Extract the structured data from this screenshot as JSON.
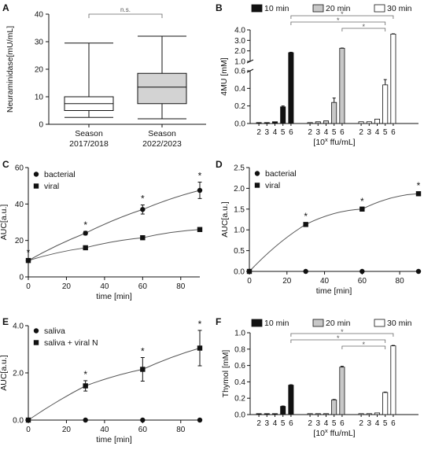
{
  "chart_data": [
    {
      "panel": "A",
      "type": "box",
      "ylabel": "Neuraminidase[mU/mL]",
      "ylim": [
        0,
        40
      ],
      "yticks": [
        0,
        10,
        20,
        30,
        40
      ],
      "categories": [
        [
          "Season",
          "2017/2018"
        ],
        [
          "Season",
          "2022/2023"
        ]
      ],
      "boxes": [
        {
          "min": 2.5,
          "q1": 5,
          "median": 7.5,
          "q3": 10,
          "max": 29.5,
          "fill": "#ffffff"
        },
        {
          "min": 2,
          "q1": 7.5,
          "median": 13.5,
          "q3": 18.5,
          "max": 32,
          "fill": "#d3d3d3"
        }
      ],
      "annotation": "n.s."
    },
    {
      "panel": "B",
      "type": "bar",
      "ylabel": "4MU [mM]",
      "xlabel": "[10",
      "xlabel_sup": "x",
      "xlabel_tail": " ffu/mL]",
      "categories": [
        "2",
        "3",
        "4",
        "5",
        "6"
      ],
      "broken_axis": {
        "lower": [
          0,
          0.6
        ],
        "upper": [
          1,
          4
        ]
      },
      "lower_ticks": [
        "0.0",
        "0.2",
        "0.4",
        "0.6"
      ],
      "upper_ticks": [
        "1.0",
        "2.0",
        "3.0",
        "4.0"
      ],
      "series": [
        {
          "name": "10 min",
          "color": "#111111",
          "values": [
            0.01,
            0.01,
            0.02,
            0.19,
            1.83
          ],
          "errors": [
            0,
            0,
            0,
            0.01,
            0.04
          ]
        },
        {
          "name": "20 min",
          "color": "#c8c8c8",
          "values": [
            0.01,
            0.02,
            0.03,
            0.24,
            2.25
          ],
          "errors": [
            0,
            0,
            0,
            0.05,
            0.02
          ]
        },
        {
          "name": "30 min",
          "color": "#ffffff",
          "values": [
            0.02,
            0.02,
            0.05,
            0.44,
            3.6
          ],
          "errors": [
            0,
            0,
            0,
            0.06,
            0.03
          ]
        }
      ],
      "annotation": "*"
    },
    {
      "panel": "C",
      "type": "line",
      "ylabel": "AUC[a.u.]",
      "xlabel": "time [min]",
      "xlim": [
        0,
        90
      ],
      "ylim": [
        0,
        60
      ],
      "xticks": [
        0,
        20,
        40,
        60,
        80
      ],
      "yticks": [
        0,
        20,
        40,
        60
      ],
      "series": [
        {
          "name": "bacterial",
          "marker": "circle",
          "x": [
            0,
            30,
            60,
            90
          ],
          "y": [
            9,
            24,
            37,
            47.5
          ],
          "errors": [
            1,
            1,
            2.5,
            4.5
          ],
          "stars": [
            true,
            true,
            true,
            true
          ]
        },
        {
          "name": "viral",
          "marker": "square",
          "x": [
            0,
            30,
            60,
            90
          ],
          "y": [
            9,
            16,
            21.5,
            26
          ],
          "errors": [
            0.5,
            0.5,
            0.5,
            0.5
          ],
          "stars": [
            false,
            false,
            false,
            false
          ]
        }
      ],
      "annotation": "*"
    },
    {
      "panel": "D",
      "type": "line",
      "ylabel": "AUC[a.u.]",
      "xlabel": "time [min]",
      "xlim": [
        0,
        90
      ],
      "ylim": [
        0,
        2.5
      ],
      "xticks": [
        0,
        20,
        40,
        60,
        80
      ],
      "yticks": [
        "0.0",
        "0.5",
        "1.0",
        "1.5",
        "2.0",
        "2.5"
      ],
      "series": [
        {
          "name": "bacterial",
          "marker": "circle",
          "x": [
            0,
            30,
            60,
            90
          ],
          "y": [
            0,
            0,
            0,
            0
          ],
          "errors": [
            0,
            0,
            0,
            0
          ],
          "stars": [
            false,
            false,
            false,
            false
          ]
        },
        {
          "name": "viral",
          "marker": "square",
          "x": [
            0,
            30,
            60,
            90
          ],
          "y": [
            0,
            1.13,
            1.5,
            1.87
          ],
          "errors": [
            0,
            0.04,
            0.03,
            0.04
          ],
          "stars": [
            false,
            true,
            true,
            true
          ]
        }
      ],
      "annotation": "*"
    },
    {
      "panel": "E",
      "type": "line",
      "ylabel": "AUC[a.u.]",
      "xlabel": "time [min]",
      "xlim": [
        0,
        90
      ],
      "ylim": [
        0,
        4
      ],
      "xticks": [
        0,
        20,
        40,
        60,
        80
      ],
      "yticks": [
        "0.0",
        "2.0",
        "4.0"
      ],
      "series": [
        {
          "name": "saliva",
          "marker": "circle",
          "x": [
            0,
            30,
            60,
            90
          ],
          "y": [
            0,
            0,
            0,
            0
          ],
          "errors": [
            0,
            0,
            0,
            0
          ],
          "stars": [
            false,
            false,
            false,
            false
          ]
        },
        {
          "name": "saliva + viral N",
          "marker": "square",
          "x": [
            0,
            30,
            60,
            90
          ],
          "y": [
            0,
            1.45,
            2.15,
            3.05
          ],
          "errors": [
            0,
            0.22,
            0.5,
            0.75
          ],
          "stars": [
            false,
            true,
            true,
            true
          ]
        }
      ],
      "annotation": "*"
    },
    {
      "panel": "F",
      "type": "bar",
      "ylabel": "Thymol [mM]",
      "xlabel": "[10",
      "xlabel_sup": "x",
      "xlabel_tail": " ffu/mL]",
      "categories": [
        "2",
        "3",
        "4",
        "5",
        "6"
      ],
      "ylim": [
        0,
        1
      ],
      "yticks": [
        "0.0",
        "0.2",
        "0.4",
        "0.6",
        "0.8",
        "1.0"
      ],
      "series": [
        {
          "name": "10 min",
          "color": "#111111",
          "values": [
            0,
            0,
            0,
            0.1,
            0.36
          ],
          "errors": [
            0,
            0,
            0,
            0.005,
            0.005
          ]
        },
        {
          "name": "20 min",
          "color": "#c8c8c8",
          "values": [
            0,
            0,
            0.01,
            0.18,
            0.58
          ],
          "errors": [
            0,
            0,
            0,
            0.005,
            0.01
          ]
        },
        {
          "name": "30 min",
          "color": "#ffffff",
          "values": [
            0,
            0,
            0.02,
            0.27,
            0.84
          ],
          "errors": [
            0,
            0,
            0,
            0.005,
            0.005
          ]
        }
      ],
      "annotation": "*"
    }
  ]
}
